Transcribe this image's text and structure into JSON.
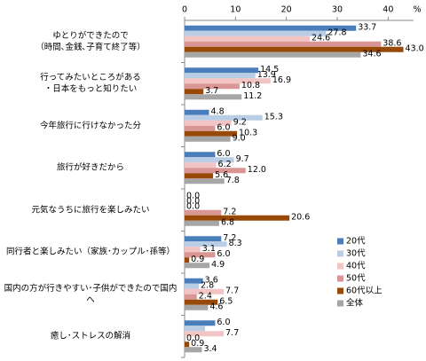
{
  "chart_data": {
    "type": "hbar",
    "xlabel": "%",
    "categories": [
      "ゆとりができたので\n（時間､金銭､子育て終了等）",
      "行ってみたいところがある\n・日本をもっと知りたい",
      "今年旅行に行けなかった分",
      "旅行が好きだから",
      "元気なうちに旅行を楽しみたい",
      "同行者と楽しみたい（家族･カップル･孫等）",
      "国内の方が行きやすい･子供ができたので国内へ",
      "癒し･ストレスの解消"
    ],
    "series": [
      {
        "name": "20代",
        "color": "#4a7ebb",
        "values": [
          33.7,
          14.5,
          4.8,
          6.0,
          0,
          7.2,
          3.6,
          6.0
        ],
        "value_labels": [
          "33.7",
          "14.5",
          "4.8",
          "6.0",
          "0.0",
          "7.2",
          "3.6",
          "6.0"
        ]
      },
      {
        "name": "30代",
        "color": "#b9cde5",
        "values": [
          27.8,
          13.9,
          15.3,
          9.7,
          0,
          8.3,
          2.8,
          4.0
        ],
        "value_labels": [
          "27.8",
          "13.9",
          "15.3",
          "9.7",
          "0.0",
          "8.3",
          "2.8",
          null
        ]
      },
      {
        "name": "40代",
        "color": "#f2c4c3",
        "values": [
          24.6,
          16.9,
          9.2,
          6.2,
          0,
          3.1,
          7.7,
          7.7
        ],
        "value_labels": [
          "24.6",
          "16.9",
          "9.2",
          "6.2",
          "0.0",
          "3.1",
          "7.7",
          "7.7"
        ]
      },
      {
        "name": "50代",
        "color": "#d99694",
        "values": [
          38.6,
          10.8,
          6.0,
          12.0,
          7.2,
          6.0,
          2.4,
          0
        ],
        "value_labels": [
          "38.6",
          "10.8",
          "6.0",
          "12.0",
          "7.2",
          "6.0",
          "2.4",
          "0.0"
        ]
      },
      {
        "name": "60代以上",
        "color": "#984807",
        "values": [
          43.0,
          3.7,
          10.3,
          5.6,
          20.6,
          0.9,
          6.5,
          0.9
        ],
        "value_labels": [
          "43.0",
          "3.7",
          "10.3",
          "5.6",
          "20.6",
          "0.9",
          "6.5",
          "0.9"
        ]
      },
      {
        "name": "全体",
        "color": "#a6a6a6",
        "values": [
          34.6,
          11.2,
          9.0,
          7.8,
          6.8,
          4.9,
          4.6,
          3.4
        ],
        "value_labels": [
          "34.6",
          "11.2",
          "9.0",
          "7.8",
          "6.8",
          "4.9",
          "4.6",
          "3.4"
        ]
      }
    ],
    "xlim": [
      0,
      45
    ],
    "xticks": [
      0,
      10,
      20,
      30,
      40
    ],
    "legend": "right"
  }
}
